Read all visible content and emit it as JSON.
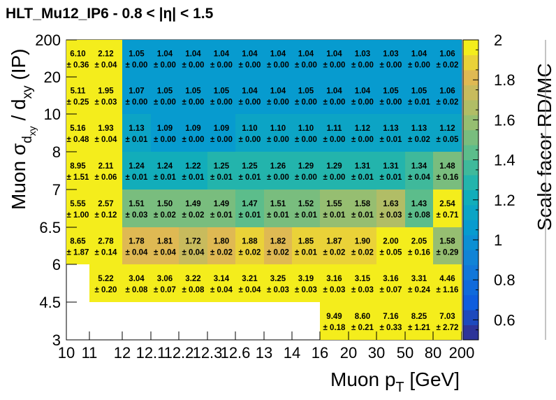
{
  "chart_data": {
    "type": "heatmap",
    "title": "HLT_Mu12_IP6  -  0.8 < |η| < 1.5",
    "xlabel": "Muon p",
    "xlabel_sub": "T",
    "xlabel_unit": " [GeV]",
    "ylabel": "Muon σ",
    "ylabel_sub": "d",
    "ylabel_subsub": "xy",
    "ylabel_mid": " / d",
    "ylabel_sub2": "xy",
    "ylabel_unit": " (IP)",
    "zlabel": "Scale facor RD/MC",
    "x_edges": [
      "10",
      "11",
      "12",
      "12.1",
      "12.2",
      "12.3",
      "12.6",
      "13",
      "14",
      "16",
      "20",
      "30",
      "50",
      "80",
      "200"
    ],
    "y_edges": [
      "3",
      "4.5",
      "6",
      "6.5",
      "7",
      "8",
      "10",
      "20",
      "200"
    ],
    "zlim": [
      0.5,
      2.0
    ],
    "z_ticks": [
      "0.6",
      "0.8",
      "1",
      "1.2",
      "1.4",
      "1.6",
      "1.8",
      "2"
    ],
    "cells": [
      {
        "row": 7,
        "col": 0,
        "value": 6.1,
        "error": 0.36
      },
      {
        "row": 7,
        "col": 1,
        "value": 2.12,
        "error": 0.04
      },
      {
        "row": 7,
        "col": 2,
        "value": 1.05,
        "error": 0.0
      },
      {
        "row": 7,
        "col": 3,
        "value": 1.04,
        "error": 0.0
      },
      {
        "row": 7,
        "col": 4,
        "value": 1.04,
        "error": 0.0
      },
      {
        "row": 7,
        "col": 5,
        "value": 1.04,
        "error": 0.0
      },
      {
        "row": 7,
        "col": 6,
        "value": 1.04,
        "error": 0.0
      },
      {
        "row": 7,
        "col": 7,
        "value": 1.04,
        "error": 0.0
      },
      {
        "row": 7,
        "col": 8,
        "value": 1.04,
        "error": 0.0
      },
      {
        "row": 7,
        "col": 9,
        "value": 1.04,
        "error": 0.0
      },
      {
        "row": 7,
        "col": 10,
        "value": 1.03,
        "error": 0.0
      },
      {
        "row": 7,
        "col": 11,
        "value": 1.03,
        "error": 0.0
      },
      {
        "row": 7,
        "col": 12,
        "value": 1.04,
        "error": 0.0
      },
      {
        "row": 7,
        "col": 13,
        "value": 1.06,
        "error": 0.02
      },
      {
        "row": 6,
        "col": 0,
        "value": 5.11,
        "error": 0.25
      },
      {
        "row": 6,
        "col": 1,
        "value": 1.95,
        "error": 0.03
      },
      {
        "row": 6,
        "col": 2,
        "value": 1.07,
        "error": 0.0
      },
      {
        "row": 6,
        "col": 3,
        "value": 1.05,
        "error": 0.0
      },
      {
        "row": 6,
        "col": 4,
        "value": 1.05,
        "error": 0.0
      },
      {
        "row": 6,
        "col": 5,
        "value": 1.05,
        "error": 0.0
      },
      {
        "row": 6,
        "col": 6,
        "value": 1.04,
        "error": 0.0
      },
      {
        "row": 6,
        "col": 7,
        "value": 1.04,
        "error": 0.0
      },
      {
        "row": 6,
        "col": 8,
        "value": 1.05,
        "error": 0.0
      },
      {
        "row": 6,
        "col": 9,
        "value": 1.04,
        "error": 0.0
      },
      {
        "row": 6,
        "col": 10,
        "value": 1.04,
        "error": 0.0
      },
      {
        "row": 6,
        "col": 11,
        "value": 1.05,
        "error": 0.0
      },
      {
        "row": 6,
        "col": 12,
        "value": 1.05,
        "error": 0.01
      },
      {
        "row": 6,
        "col": 13,
        "value": 1.06,
        "error": 0.02
      },
      {
        "row": 5,
        "col": 0,
        "value": 5.16,
        "error": 0.48
      },
      {
        "row": 5,
        "col": 1,
        "value": 1.93,
        "error": 0.04
      },
      {
        "row": 5,
        "col": 2,
        "value": 1.13,
        "error": 0.01
      },
      {
        "row": 5,
        "col": 3,
        "value": 1.09,
        "error": 0.0
      },
      {
        "row": 5,
        "col": 4,
        "value": 1.09,
        "error": 0.0
      },
      {
        "row": 5,
        "col": 5,
        "value": 1.09,
        "error": 0.0
      },
      {
        "row": 5,
        "col": 6,
        "value": 1.1,
        "error": 0.0
      },
      {
        "row": 5,
        "col": 7,
        "value": 1.1,
        "error": 0.0
      },
      {
        "row": 5,
        "col": 8,
        "value": 1.1,
        "error": 0.0
      },
      {
        "row": 5,
        "col": 9,
        "value": 1.11,
        "error": 0.0
      },
      {
        "row": 5,
        "col": 10,
        "value": 1.12,
        "error": 0.0
      },
      {
        "row": 5,
        "col": 11,
        "value": 1.13,
        "error": 0.01
      },
      {
        "row": 5,
        "col": 12,
        "value": 1.13,
        "error": 0.02
      },
      {
        "row": 5,
        "col": 13,
        "value": 1.12,
        "error": 0.05
      },
      {
        "row": 4,
        "col": 0,
        "value": 8.95,
        "error": 1.51
      },
      {
        "row": 4,
        "col": 1,
        "value": 2.11,
        "error": 0.06
      },
      {
        "row": 4,
        "col": 2,
        "value": 1.24,
        "error": 0.01
      },
      {
        "row": 4,
        "col": 3,
        "value": 1.24,
        "error": 0.01
      },
      {
        "row": 4,
        "col": 4,
        "value": 1.22,
        "error": 0.01
      },
      {
        "row": 4,
        "col": 5,
        "value": 1.25,
        "error": 0.01
      },
      {
        "row": 4,
        "col": 6,
        "value": 1.25,
        "error": 0.01
      },
      {
        "row": 4,
        "col": 7,
        "value": 1.26,
        "error": 0.0
      },
      {
        "row": 4,
        "col": 8,
        "value": 1.29,
        "error": 0.0
      },
      {
        "row": 4,
        "col": 9,
        "value": 1.29,
        "error": 0.0
      },
      {
        "row": 4,
        "col": 10,
        "value": 1.31,
        "error": 0.01
      },
      {
        "row": 4,
        "col": 11,
        "value": 1.31,
        "error": 0.01
      },
      {
        "row": 4,
        "col": 12,
        "value": 1.34,
        "error": 0.04
      },
      {
        "row": 4,
        "col": 13,
        "value": 1.48,
        "error": 0.16
      },
      {
        "row": 3,
        "col": 0,
        "value": 5.55,
        "error": 1.0
      },
      {
        "row": 3,
        "col": 1,
        "value": 2.57,
        "error": 0.12
      },
      {
        "row": 3,
        "col": 2,
        "value": 1.51,
        "error": 0.03
      },
      {
        "row": 3,
        "col": 3,
        "value": 1.5,
        "error": 0.02
      },
      {
        "row": 3,
        "col": 4,
        "value": 1.49,
        "error": 0.02
      },
      {
        "row": 3,
        "col": 5,
        "value": 1.49,
        "error": 0.01
      },
      {
        "row": 3,
        "col": 6,
        "value": 1.47,
        "error": 0.01
      },
      {
        "row": 3,
        "col": 7,
        "value": 1.51,
        "error": 0.01
      },
      {
        "row": 3,
        "col": 8,
        "value": 1.52,
        "error": 0.01
      },
      {
        "row": 3,
        "col": 9,
        "value": 1.55,
        "error": 0.01
      },
      {
        "row": 3,
        "col": 10,
        "value": 1.58,
        "error": 0.01
      },
      {
        "row": 3,
        "col": 11,
        "value": 1.63,
        "error": 0.03
      },
      {
        "row": 3,
        "col": 12,
        "value": 1.43,
        "error": 0.08
      },
      {
        "row": 3,
        "col": 13,
        "value": 2.54,
        "error": 0.71
      },
      {
        "row": 2,
        "col": 0,
        "value": 8.65,
        "error": 1.87
      },
      {
        "row": 2,
        "col": 1,
        "value": 2.78,
        "error": 0.14
      },
      {
        "row": 2,
        "col": 2,
        "value": 1.78,
        "error": 0.04
      },
      {
        "row": 2,
        "col": 3,
        "value": 1.81,
        "error": 0.04
      },
      {
        "row": 2,
        "col": 4,
        "value": 1.72,
        "error": 0.04
      },
      {
        "row": 2,
        "col": 5,
        "value": 1.8,
        "error": 0.02
      },
      {
        "row": 2,
        "col": 6,
        "value": 1.88,
        "error": 0.02
      },
      {
        "row": 2,
        "col": 7,
        "value": 1.82,
        "error": 0.02
      },
      {
        "row": 2,
        "col": 8,
        "value": 1.85,
        "error": 0.01
      },
      {
        "row": 2,
        "col": 9,
        "value": 1.87,
        "error": 0.02
      },
      {
        "row": 2,
        "col": 10,
        "value": 1.9,
        "error": 0.02
      },
      {
        "row": 2,
        "col": 11,
        "value": 2.0,
        "error": 0.05
      },
      {
        "row": 2,
        "col": 12,
        "value": 2.05,
        "error": 0.16
      },
      {
        "row": 2,
        "col": 13,
        "value": 1.58,
        "error": 0.29
      },
      {
        "row": 1,
        "col": 1,
        "value": 5.22,
        "error": 0.2
      },
      {
        "row": 1,
        "col": 2,
        "value": 3.04,
        "error": 0.08
      },
      {
        "row": 1,
        "col": 3,
        "value": 3.06,
        "error": 0.07
      },
      {
        "row": 1,
        "col": 4,
        "value": 3.22,
        "error": 0.08
      },
      {
        "row": 1,
        "col": 5,
        "value": 3.14,
        "error": 0.04
      },
      {
        "row": 1,
        "col": 6,
        "value": 3.21,
        "error": 0.04
      },
      {
        "row": 1,
        "col": 7,
        "value": 3.25,
        "error": 0.03
      },
      {
        "row": 1,
        "col": 8,
        "value": 3.19,
        "error": 0.03
      },
      {
        "row": 1,
        "col": 9,
        "value": 3.16,
        "error": 0.03
      },
      {
        "row": 1,
        "col": 10,
        "value": 3.15,
        "error": 0.03
      },
      {
        "row": 1,
        "col": 11,
        "value": 3.16,
        "error": 0.07
      },
      {
        "row": 1,
        "col": 12,
        "value": 3.31,
        "error": 0.24
      },
      {
        "row": 1,
        "col": 13,
        "value": 4.46,
        "error": 1.16
      },
      {
        "row": 0,
        "col": 9,
        "value": 9.49,
        "error": 0.18
      },
      {
        "row": 0,
        "col": 10,
        "value": 8.6,
        "error": 0.21
      },
      {
        "row": 0,
        "col": 11,
        "value": 7.16,
        "error": 0.33
      },
      {
        "row": 0,
        "col": 12,
        "value": 8.25,
        "error": 1.21
      },
      {
        "row": 0,
        "col": 13,
        "value": 7.03,
        "error": 2.72
      }
    ]
  }
}
